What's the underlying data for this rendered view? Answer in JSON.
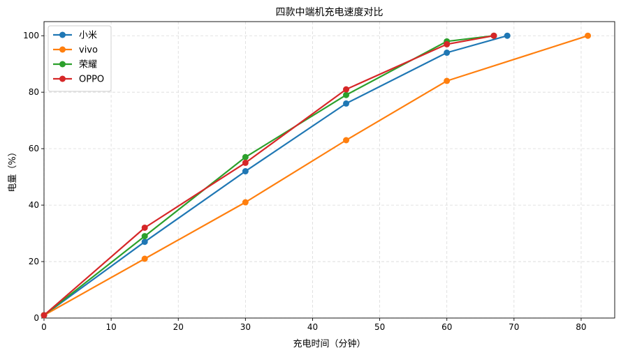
{
  "chart_data": {
    "type": "line",
    "title": "四款中端机充电速度对比",
    "xlabel": "充电时间（分钟）",
    "ylabel": "电量（%）",
    "xlim": [
      0,
      85
    ],
    "ylim": [
      0,
      105
    ],
    "xticks": [
      0,
      10,
      20,
      30,
      40,
      50,
      60,
      70,
      80
    ],
    "yticks": [
      0,
      20,
      40,
      60,
      80,
      100
    ],
    "grid": true,
    "legend_position": "top-left",
    "series": [
      {
        "name": "小米",
        "color": "#1f77b4",
        "x": [
          0,
          15,
          30,
          45,
          60,
          69
        ],
        "y": [
          1,
          27,
          52,
          76,
          94,
          100
        ]
      },
      {
        "name": "vivo",
        "color": "#ff7f0e",
        "x": [
          0,
          15,
          30,
          45,
          60,
          81
        ],
        "y": [
          1,
          21,
          41,
          63,
          84,
          100
        ]
      },
      {
        "name": "荣耀",
        "color": "#2ca02c",
        "x": [
          0,
          15,
          30,
          45,
          60,
          67
        ],
        "y": [
          1,
          29,
          57,
          79,
          98,
          100
        ]
      },
      {
        "name": "OPPO",
        "color": "#d62728",
        "x": [
          0,
          15,
          30,
          45,
          60,
          67
        ],
        "y": [
          1,
          32,
          55,
          81,
          97,
          100
        ]
      }
    ]
  }
}
